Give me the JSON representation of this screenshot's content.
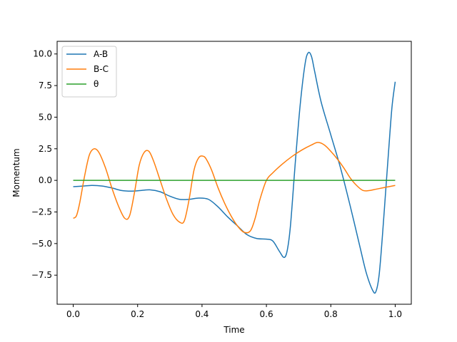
{
  "chart_data": {
    "type": "line",
    "title": "",
    "xlabel": "Time",
    "ylabel": "Momentum",
    "xlim": [
      -0.05,
      1.05
    ],
    "ylim": [
      -9.8,
      11.0
    ],
    "xticks": [
      0.0,
      0.2,
      0.4,
      0.6,
      0.8,
      1.0
    ],
    "xtick_labels": [
      "0.0",
      "0.2",
      "0.4",
      "0.6",
      "0.8",
      "1.0"
    ],
    "yticks": [
      -7.5,
      -5.0,
      -2.5,
      0.0,
      2.5,
      5.0,
      7.5,
      10.0
    ],
    "ytick_labels": [
      "−7.5",
      "−5.0",
      "−2.5",
      "0.0",
      "2.5",
      "5.0",
      "7.5",
      "10.0"
    ],
    "grid": false,
    "legend_position": "top-left",
    "series": [
      {
        "name": "A-B",
        "color": "#1f77b4",
        "x": [
          0.0,
          0.03,
          0.06,
          0.09,
          0.12,
          0.15,
          0.18,
          0.21,
          0.24,
          0.27,
          0.3,
          0.33,
          0.36,
          0.39,
          0.42,
          0.45,
          0.48,
          0.51,
          0.54,
          0.57,
          0.6,
          0.62,
          0.64,
          0.655,
          0.665,
          0.675,
          0.69,
          0.705,
          0.72,
          0.73,
          0.74,
          0.75,
          0.77,
          0.8,
          0.83,
          0.86,
          0.89,
          0.91,
          0.93,
          0.94,
          0.95,
          0.96,
          0.97,
          0.98,
          0.99,
          1.0
        ],
        "values": [
          -0.5,
          -0.45,
          -0.4,
          -0.45,
          -0.6,
          -0.8,
          -0.85,
          -0.8,
          -0.75,
          -0.9,
          -1.25,
          -1.5,
          -1.5,
          -1.4,
          -1.5,
          -2.1,
          -2.9,
          -3.6,
          -4.3,
          -4.6,
          -4.65,
          -4.8,
          -5.6,
          -6.1,
          -5.5,
          -3.5,
          1.5,
          6.0,
          9.2,
          10.1,
          9.8,
          8.6,
          6.2,
          3.6,
          1.0,
          -2.0,
          -5.2,
          -7.3,
          -8.7,
          -8.8,
          -7.5,
          -4.5,
          -1.0,
          2.5,
          5.8,
          7.8
        ]
      },
      {
        "name": "B-C",
        "color": "#ff7f0e",
        "x": [
          0.0,
          0.01,
          0.02,
          0.035,
          0.05,
          0.065,
          0.08,
          0.1,
          0.12,
          0.14,
          0.16,
          0.175,
          0.19,
          0.205,
          0.22,
          0.235,
          0.25,
          0.27,
          0.29,
          0.31,
          0.33,
          0.345,
          0.36,
          0.375,
          0.39,
          0.405,
          0.415,
          0.43,
          0.45,
          0.47,
          0.49,
          0.51,
          0.53,
          0.55,
          0.565,
          0.58,
          0.6,
          0.62,
          0.65,
          0.68,
          0.71,
          0.74,
          0.76,
          0.78,
          0.8,
          0.82,
          0.84,
          0.86,
          0.88,
          0.9,
          0.92,
          0.94,
          0.96,
          0.98,
          1.0
        ],
        "values": [
          -3.0,
          -2.8,
          -1.8,
          0.3,
          2.0,
          2.5,
          2.2,
          1.0,
          -0.6,
          -2.0,
          -3.0,
          -2.8,
          -1.0,
          1.2,
          2.2,
          2.3,
          1.5,
          0.0,
          -1.5,
          -2.7,
          -3.3,
          -3.2,
          -1.5,
          0.8,
          1.8,
          1.9,
          1.6,
          0.8,
          -0.6,
          -1.8,
          -2.8,
          -3.6,
          -4.1,
          -4.0,
          -3.0,
          -1.5,
          0.0,
          0.6,
          1.3,
          1.9,
          2.4,
          2.8,
          3.0,
          2.8,
          2.3,
          1.7,
          1.0,
          0.2,
          -0.4,
          -0.8,
          -0.8,
          -0.7,
          -0.6,
          -0.5,
          -0.4
        ]
      },
      {
        "name": "θ",
        "color": "#2ca02c",
        "x": [
          0.0,
          1.0
        ],
        "values": [
          0.0,
          0.0
        ]
      }
    ]
  }
}
